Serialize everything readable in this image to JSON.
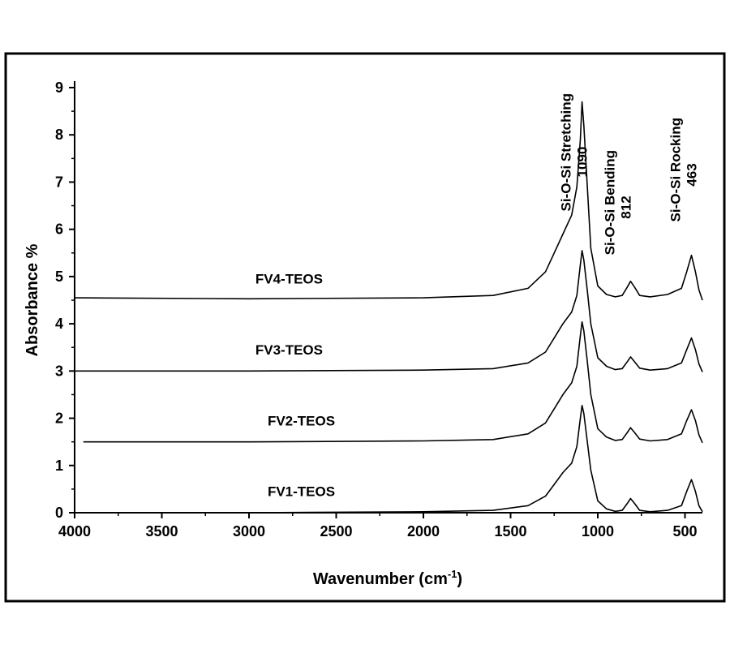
{
  "chart_data": {
    "type": "line",
    "title": "",
    "xlabel": "Wavenumber (cm",
    "xlabel_sup": "-1",
    "xlabel_close": ")",
    "ylabel": "Absorbance %",
    "xlim": [
      4000,
      400
    ],
    "ylim": [
      0,
      9
    ],
    "x_reversed": true,
    "grid": false,
    "x_ticks": [
      "4000",
      "3500",
      "3000",
      "2500",
      "2000",
      "1500",
      "1000",
      "500"
    ],
    "y_ticks": [
      "0",
      "1",
      "2",
      "3",
      "4",
      "5",
      "6",
      "7",
      "8",
      "9"
    ],
    "line_color": "#000000",
    "series": [
      {
        "name": "FV1-TEOS",
        "x": [
          4000,
          3000,
          2000,
          1600,
          1400,
          1300,
          1250,
          1200,
          1150,
          1120,
          1100,
          1090,
          1080,
          1060,
          1040,
          1000,
          950,
          900,
          860,
          830,
          812,
          790,
          760,
          700,
          600,
          520,
          490,
          463,
          440,
          420,
          400
        ],
        "y": [
          0,
          0,
          0.02,
          0.05,
          0.15,
          0.35,
          0.6,
          0.85,
          1.05,
          1.4,
          2.0,
          2.27,
          2.1,
          1.5,
          0.9,
          0.25,
          0.08,
          0.03,
          0.05,
          0.2,
          0.3,
          0.2,
          0.05,
          0.02,
          0.05,
          0.15,
          0.45,
          0.7,
          0.45,
          0.15,
          0.02
        ]
      },
      {
        "name": "FV2-TEOS",
        "x": [
          3950,
          3000,
          2000,
          1600,
          1400,
          1300,
          1250,
          1200,
          1150,
          1120,
          1100,
          1090,
          1080,
          1060,
          1040,
          1000,
          950,
          900,
          860,
          830,
          812,
          790,
          760,
          700,
          600,
          520,
          490,
          463,
          440,
          420,
          400
        ],
        "y": [
          1.5,
          1.5,
          1.52,
          1.55,
          1.67,
          1.9,
          2.2,
          2.5,
          2.75,
          3.1,
          3.75,
          4.04,
          3.85,
          3.2,
          2.5,
          1.78,
          1.6,
          1.53,
          1.55,
          1.7,
          1.8,
          1.7,
          1.56,
          1.52,
          1.55,
          1.67,
          1.95,
          2.18,
          1.95,
          1.65,
          1.48
        ]
      },
      {
        "name": "FV3-TEOS",
        "x": [
          4000,
          3000,
          2000,
          1600,
          1400,
          1300,
          1250,
          1200,
          1150,
          1120,
          1100,
          1090,
          1080,
          1060,
          1040,
          1000,
          950,
          900,
          860,
          830,
          812,
          790,
          760,
          700,
          600,
          520,
          490,
          463,
          440,
          420,
          400
        ],
        "y": [
          3.0,
          3.0,
          3.02,
          3.05,
          3.17,
          3.4,
          3.7,
          4.0,
          4.25,
          4.6,
          5.25,
          5.55,
          5.35,
          4.7,
          4.0,
          3.28,
          3.1,
          3.03,
          3.05,
          3.2,
          3.3,
          3.2,
          3.06,
          3.02,
          3.05,
          3.17,
          3.45,
          3.7,
          3.45,
          3.15,
          2.98
        ]
      },
      {
        "name": "FV4-TEOS",
        "x": [
          4000,
          3000,
          2000,
          1600,
          1400,
          1300,
          1250,
          1200,
          1150,
          1120,
          1100,
          1090,
          1080,
          1060,
          1040,
          1000,
          950,
          900,
          860,
          830,
          812,
          790,
          760,
          700,
          600,
          520,
          490,
          463,
          440,
          420,
          400
        ],
        "y": [
          4.55,
          4.53,
          4.55,
          4.6,
          4.75,
          5.1,
          5.5,
          5.9,
          6.3,
          6.9,
          7.9,
          8.7,
          8.2,
          6.9,
          5.6,
          4.8,
          4.62,
          4.57,
          4.6,
          4.78,
          4.9,
          4.78,
          4.6,
          4.57,
          4.62,
          4.75,
          5.1,
          5.45,
          5.1,
          4.72,
          4.5
        ]
      }
    ],
    "series_label_positions": [
      {
        "x": 2700,
        "y": 0.35
      },
      {
        "x": 2700,
        "y": 1.85
      },
      {
        "x": 2770,
        "y": 3.35
      },
      {
        "x": 2770,
        "y": 4.85
      }
    ],
    "annotations": [
      {
        "line1": "Si-O-Si Stretching",
        "line2": "1090",
        "x": 1090
      },
      {
        "line1": "Si-O-Si Bending",
        "line2": "812",
        "x": 812
      },
      {
        "line1": "Si-O-Si Rocking",
        "line2": "463",
        "x": 463
      }
    ]
  }
}
